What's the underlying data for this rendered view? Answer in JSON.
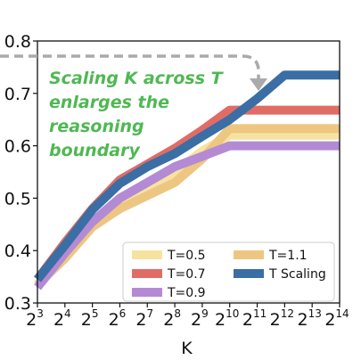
{
  "chart_data": {
    "type": "line",
    "xlabel": "K",
    "ylabel": "",
    "x_scale": "log2",
    "x": [
      3,
      4,
      5,
      6,
      7,
      8,
      9,
      10,
      11,
      12,
      13,
      14
    ],
    "x_ticks": [
      {
        "base": "2",
        "exp": "3"
      },
      {
        "base": "2",
        "exp": "4"
      },
      {
        "base": "2",
        "exp": "5"
      },
      {
        "base": "2",
        "exp": "6"
      },
      {
        "base": "2",
        "exp": "7"
      },
      {
        "base": "2",
        "exp": "8"
      },
      {
        "base": "2",
        "exp": "9"
      },
      {
        "base": "2",
        "exp": "10"
      },
      {
        "base": "2",
        "exp": "11"
      },
      {
        "base": "2",
        "exp": "12"
      },
      {
        "base": "2",
        "exp": "13"
      },
      {
        "base": "2",
        "exp": "14"
      }
    ],
    "y_ticks": [
      "0.3",
      "0.4",
      "0.5",
      "0.6",
      "0.7",
      "0.8"
    ],
    "ylim": [
      0.3,
      0.8
    ],
    "xlim": [
      3,
      14
    ],
    "grid": false,
    "legend_position": "bottom-right",
    "series": [
      {
        "name": "T=0.5",
        "color": "#f7e3a1",
        "values": [
          0.335,
          0.39,
          0.45,
          0.49,
          0.52,
          0.55,
          0.59,
          0.62,
          0.62,
          0.62,
          0.62,
          0.62
        ]
      },
      {
        "name": "T=0.7",
        "color": "#e06c66",
        "values": [
          0.345,
          0.415,
          0.48,
          0.535,
          0.565,
          0.595,
          0.63,
          0.668,
          0.668,
          0.668,
          0.668,
          0.668
        ]
      },
      {
        "name": "T=0.9",
        "color": "#b48ad4",
        "values": [
          0.33,
          0.395,
          0.455,
          0.5,
          0.53,
          0.56,
          0.58,
          0.6,
          0.6,
          0.6,
          0.6,
          0.6
        ]
      },
      {
        "name": "T=1.1",
        "color": "#edc781",
        "values": [
          0.335,
          0.385,
          0.445,
          0.48,
          0.505,
          0.53,
          0.575,
          0.633,
          0.633,
          0.633,
          0.633,
          0.633
        ]
      },
      {
        "name": "T Scaling",
        "color": "#3a6ea5",
        "values": [
          0.345,
          0.41,
          0.478,
          0.528,
          0.56,
          0.585,
          0.618,
          0.65,
          0.69,
          0.735,
          0.735,
          0.735
        ]
      }
    ],
    "annotation": {
      "lines": [
        "Scaling K across T",
        "enlarges the",
        "reasoning",
        "boundary"
      ],
      "color": "#4fb853",
      "arrow_color": "#aaaaaa"
    }
  }
}
